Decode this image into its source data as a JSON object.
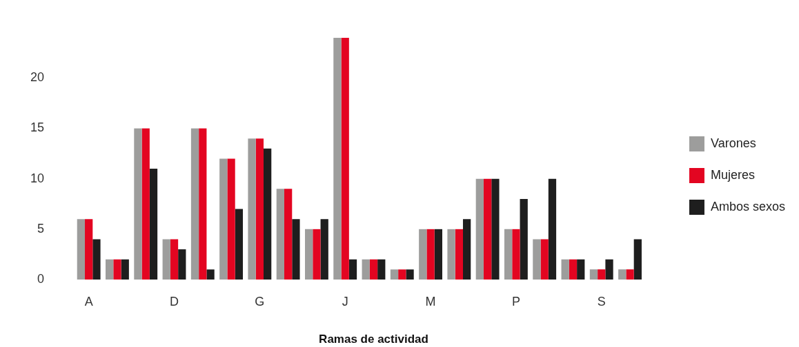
{
  "chart_data": {
    "type": "bar",
    "xlabel": "Ramas de actividad",
    "categories": [
      "A",
      null,
      null,
      "D",
      null,
      null,
      "G",
      null,
      null,
      "J",
      null,
      null,
      "M",
      null,
      null,
      "P",
      null,
      null,
      "S",
      null,
      null
    ],
    "series": [
      {
        "name": "Varones",
        "color": "#9d9d9c",
        "values": [
          6,
          2,
          15,
          4,
          15,
          12,
          14,
          9,
          5,
          24,
          2,
          1,
          5,
          5,
          10,
          5,
          4,
          2,
          1,
          1,
          0
        ]
      },
      {
        "name": "Mujeres",
        "color": "#e30521",
        "values": [
          6,
          2,
          15,
          4,
          15,
          12,
          14,
          9,
          5,
          24,
          2,
          1,
          5,
          5,
          10,
          5,
          4,
          2,
          1,
          1,
          0
        ]
      },
      {
        "name": "Ambos sexos",
        "color": "#1e1e1e",
        "values": [
          4,
          2,
          11,
          3,
          1,
          7,
          13,
          6,
          6,
          2,
          2,
          1,
          5,
          6,
          10,
          8,
          10,
          2,
          2,
          4,
          0
        ]
      }
    ],
    "ylim": [
      0,
      24
    ],
    "yticks": [
      0,
      5,
      10,
      15,
      20
    ],
    "grid": false,
    "legend": "right"
  }
}
